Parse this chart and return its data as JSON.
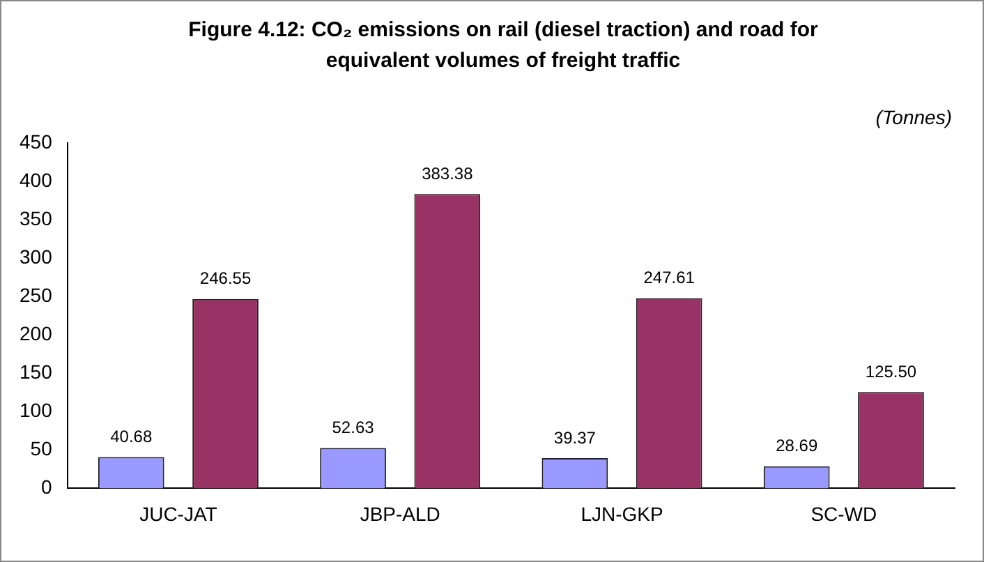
{
  "chart_data": {
    "type": "bar",
    "title": "Figure 4.12: CO₂ emissions on rail (diesel traction) and road for equivalent volumes of freight traffic",
    "annotations": [
      "(Tonnes)"
    ],
    "categories": [
      "JUC-JAT",
      "JBP-ALD",
      "LJN-GKP",
      "SC-WD"
    ],
    "series": [
      {
        "color": "#9999ff",
        "values": [
          40.68,
          52.63,
          39.37,
          28.69
        ],
        "value_labels": [
          "40.68",
          "52.63",
          "39.37",
          "28.69"
        ]
      },
      {
        "color": "#993366",
        "values": [
          246.55,
          383.38,
          247.61,
          125.5
        ],
        "value_labels": [
          "246.55",
          "383.38",
          "247.61",
          "125.50"
        ]
      }
    ],
    "ylim": [
      0,
      450
    ],
    "yticks": [
      0,
      50,
      100,
      150,
      200,
      250,
      300,
      350,
      400,
      450
    ],
    "grid": false,
    "legend": false
  }
}
